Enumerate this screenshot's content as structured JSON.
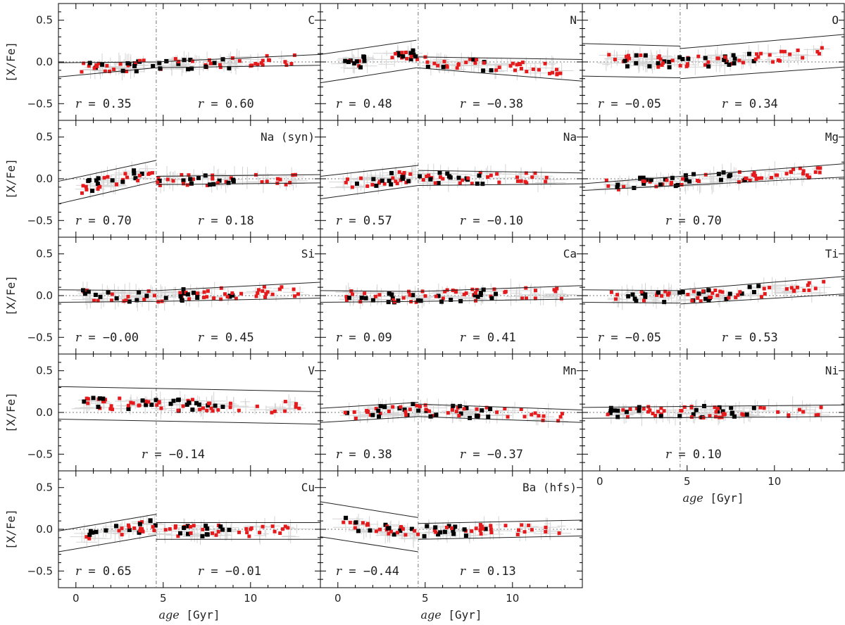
{
  "chart_data": {
    "type": "scatter",
    "xlabel": "age [Gyr]",
    "ylabel": "[X/Fe]",
    "xlim": [
      -1,
      14
    ],
    "ylim": [
      -0.7,
      0.7
    ],
    "xticks": [
      "0",
      "5",
      "10"
    ],
    "yticks": [
      "−0.5",
      "0.0",
      "0.5"
    ],
    "divider_age": 4.6,
    "series_colors": {
      "red": "#e41a1c",
      "black": "#000000"
    },
    "panels": [
      {
        "element": "C",
        "r_left": "0.35",
        "r_right": "0.60",
        "fit_left": [
          [
            -1,
            -0.01
          ],
          [
            4.6,
            0.0
          ],
          [
            -1,
            -0.18
          ],
          [
            4.6,
            -0.07
          ]
        ],
        "fit_right": [
          [
            4.6,
            0.0
          ],
          [
            14,
            0.09
          ],
          [
            4.6,
            -0.07
          ],
          [
            14,
            -0.04
          ]
        ]
      },
      {
        "element": "N",
        "r_left": "0.48",
        "r_right": "−0.38",
        "fit_left": [
          [
            -1,
            0.09
          ],
          [
            4.5,
            0.26
          ],
          [
            -1,
            -0.25
          ],
          [
            4.5,
            -0.07
          ]
        ],
        "fit_right": [
          [
            4.5,
            0.06
          ],
          [
            14,
            0.03
          ],
          [
            4.5,
            -0.07
          ],
          [
            14,
            -0.23
          ]
        ]
      },
      {
        "element": "O",
        "r_left": "−0.05",
        "r_right": "0.34",
        "fit_left": [
          [
            -1,
            0.22
          ],
          [
            4.6,
            0.19
          ],
          [
            -1,
            -0.17
          ],
          [
            4.6,
            -0.19
          ]
        ],
        "fit_right": [
          [
            4.6,
            0.16
          ],
          [
            14,
            0.33
          ],
          [
            4.6,
            -0.2
          ],
          [
            14,
            -0.06
          ]
        ]
      },
      {
        "element": "Na (syn)",
        "r_left": "0.70",
        "r_right": "0.18",
        "fit_left": [
          [
            -1,
            -0.03
          ],
          [
            4.6,
            0.22
          ],
          [
            -1,
            -0.3
          ],
          [
            4.6,
            -0.03
          ]
        ],
        "fit_right": [
          [
            4.6,
            0.03
          ],
          [
            14,
            0.05
          ],
          [
            4.6,
            -0.07
          ],
          [
            14,
            -0.05
          ]
        ]
      },
      {
        "element": "Na",
        "r_left": "0.57",
        "r_right": "−0.10",
        "fit_left": [
          [
            -1,
            0.03
          ],
          [
            4.6,
            0.16
          ],
          [
            -1,
            -0.24
          ],
          [
            4.6,
            -0.08
          ]
        ],
        "fit_right": [
          [
            4.6,
            0.1
          ],
          [
            14,
            0.07
          ],
          [
            4.6,
            -0.08
          ],
          [
            14,
            -0.06
          ]
        ]
      },
      {
        "element": "Mg",
        "r_left": "",
        "r_right": "0.70",
        "fit_left": [
          [
            -1,
            -0.06
          ],
          [
            14,
            0.18
          ],
          [
            -1,
            -0.14
          ],
          [
            14,
            0.02
          ]
        ],
        "fit_right": []
      },
      {
        "element": "Si",
        "r_left": "−0.00",
        "r_right": "0.45",
        "fit_left": [
          [
            -1,
            0.07
          ],
          [
            4.6,
            0.06
          ],
          [
            -1,
            -0.08
          ],
          [
            4.6,
            -0.07
          ]
        ],
        "fit_right": [
          [
            4.6,
            0.06
          ],
          [
            14,
            0.16
          ],
          [
            4.6,
            -0.07
          ],
          [
            14,
            -0.03
          ]
        ]
      },
      {
        "element": "Ca",
        "r_left": "0.09",
        "r_right": "0.41",
        "fit_left": [
          [
            -1,
            0.06
          ],
          [
            4.6,
            0.05
          ],
          [
            -1,
            -0.08
          ],
          [
            4.6,
            -0.07
          ]
        ],
        "fit_right": [
          [
            4.6,
            0.05
          ],
          [
            14,
            0.12
          ],
          [
            4.6,
            -0.07
          ],
          [
            14,
            -0.04
          ]
        ]
      },
      {
        "element": "Ti",
        "r_left": "−0.05",
        "r_right": "0.53",
        "fit_left": [
          [
            -1,
            0.07
          ],
          [
            4.6,
            0.06
          ],
          [
            -1,
            -0.08
          ],
          [
            4.6,
            -0.09
          ]
        ],
        "fit_right": [
          [
            4.6,
            0.07
          ],
          [
            14,
            0.23
          ],
          [
            4.6,
            -0.1
          ],
          [
            14,
            0.02
          ]
        ]
      },
      {
        "element": "V",
        "r_left": "",
        "r_right": "−0.14",
        "fit_left": [
          [
            -1,
            0.31
          ],
          [
            14,
            0.25
          ],
          [
            -1,
            -0.08
          ],
          [
            14,
            -0.14
          ]
        ],
        "fit_right": []
      },
      {
        "element": "Mn",
        "r_left": "0.38",
        "r_right": "−0.37",
        "fit_left": [
          [
            -1,
            0.05
          ],
          [
            4.6,
            0.12
          ],
          [
            -1,
            -0.12
          ],
          [
            4.6,
            -0.05
          ]
        ],
        "fit_right": [
          [
            4.6,
            0.1
          ],
          [
            14,
            0.03
          ],
          [
            4.6,
            -0.05
          ],
          [
            14,
            -0.12
          ]
        ]
      },
      {
        "element": "Ni",
        "r_left": "",
        "r_right": "0.10",
        "fit_left": [
          [
            -1,
            0.06
          ],
          [
            14,
            0.09
          ],
          [
            -1,
            -0.07
          ],
          [
            14,
            -0.05
          ]
        ],
        "fit_right": []
      },
      {
        "element": "Cu",
        "r_left": "0.65",
        "r_right": "−0.01",
        "fit_left": [
          [
            -1,
            -0.02
          ],
          [
            4.6,
            0.18
          ],
          [
            -1,
            -0.27
          ],
          [
            4.6,
            -0.07
          ]
        ],
        "fit_right": [
          [
            4.6,
            0.08
          ],
          [
            14,
            0.08
          ],
          [
            4.6,
            -0.12
          ],
          [
            14,
            -0.12
          ]
        ]
      },
      {
        "element": "Ba (hfs)",
        "r_left": "−0.44",
        "r_right": "0.13",
        "fit_left": [
          [
            -1,
            0.33
          ],
          [
            4.6,
            0.14
          ],
          [
            -1,
            -0.09
          ],
          [
            4.6,
            -0.27
          ]
        ],
        "fit_right": [
          [
            4.6,
            0.07
          ],
          [
            14,
            0.11
          ],
          [
            4.6,
            -0.12
          ],
          [
            14,
            -0.08
          ]
        ]
      }
    ]
  }
}
